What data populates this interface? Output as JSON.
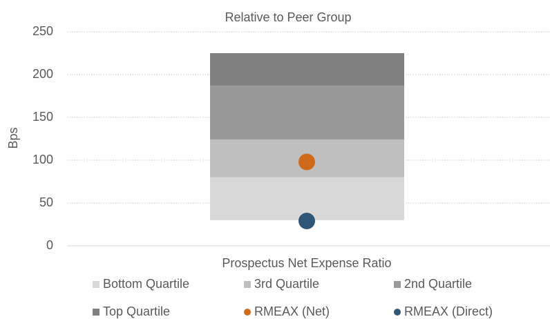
{
  "chart_data": {
    "type": "bar",
    "title": "Relative to Peer Group",
    "y_label": "Bps",
    "categories": [
      "Prospectus Net Expense Ratio"
    ],
    "base": [
      30
    ],
    "series": [
      {
        "name": "Bottom Quartile",
        "color": "#d9d9d9",
        "values": [
          50
        ]
      },
      {
        "name": "3rd Quartile",
        "color": "#bfbfbf",
        "values": [
          44
        ]
      },
      {
        "name": "2nd Quartile",
        "color": "#999999",
        "values": [
          63
        ]
      },
      {
        "name": "Top Quartile",
        "color": "#808080",
        "values": [
          38
        ]
      }
    ],
    "markers": [
      {
        "name": "RMEAX (Net)",
        "color": "#cf6a1b",
        "values": [
          98
        ]
      },
      {
        "name": "RMEAX (Direct)",
        "color": "#2f5878",
        "values": [
          29
        ]
      }
    ],
    "ylim": [
      0,
      250
    ],
    "yticks": [
      0,
      50,
      100,
      150,
      200,
      250
    ],
    "grid": true
  }
}
